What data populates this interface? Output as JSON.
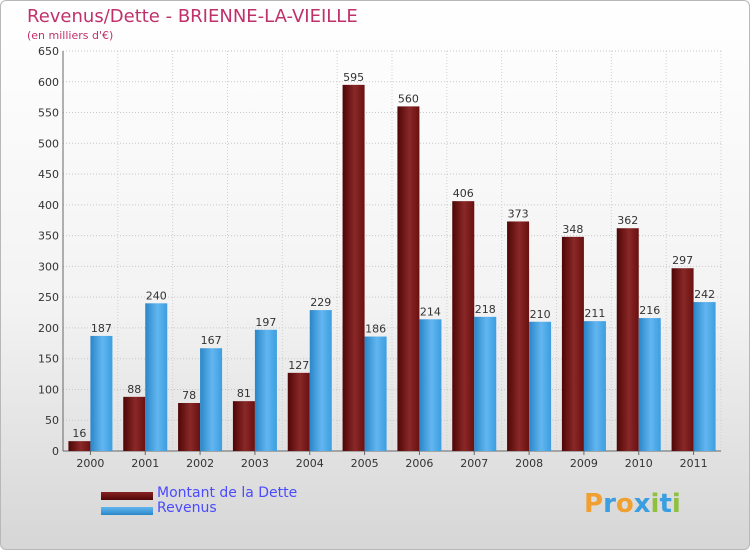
{
  "title": "Revenus/Dette - BRIENNE-LA-VIEILLE",
  "subtitle": "(en milliers d'€)",
  "colors": {
    "debt": "#6b0d0d",
    "revenue": "#3a9ee0",
    "title": "#c0306a",
    "legend_text": "#4a4aff"
  },
  "legend": [
    {
      "label": "Montant de la Dette",
      "color": "#6b0d0d"
    },
    {
      "label": "Revenus",
      "color": "#3a9ee0"
    }
  ],
  "logo": {
    "text": "Proxiti",
    "letters": [
      {
        "ch": "P",
        "color": "#f0a030"
      },
      {
        "ch": "r",
        "color": "#3a9ee0"
      },
      {
        "ch": "o",
        "color": "#f0a030"
      },
      {
        "ch": "x",
        "color": "#3a9ee0"
      },
      {
        "ch": "i",
        "color": "#90c040"
      },
      {
        "ch": "t",
        "color": "#3a9ee0"
      },
      {
        "ch": "i",
        "color": "#90c040"
      }
    ]
  },
  "chart_data": {
    "type": "bar",
    "title": "Revenus/Dette - BRIENNE-LA-VIEILLE",
    "subtitle": "(en milliers d'€)",
    "categories": [
      "2000",
      "2001",
      "2002",
      "2003",
      "2004",
      "2005",
      "2006",
      "2007",
      "2008",
      "2009",
      "2010",
      "2011"
    ],
    "series": [
      {
        "name": "Montant de la Dette",
        "values": [
          16,
          88,
          78,
          81,
          127,
          595,
          560,
          406,
          373,
          348,
          362,
          297
        ]
      },
      {
        "name": "Revenus",
        "values": [
          187,
          240,
          167,
          197,
          229,
          186,
          214,
          218,
          210,
          211,
          216,
          242
        ]
      }
    ],
    "ylim": [
      0,
      650
    ],
    "yticks": [
      0,
      50,
      100,
      150,
      200,
      250,
      300,
      350,
      400,
      450,
      500,
      550,
      600,
      650
    ],
    "grid": true,
    "legend_position": "bottom-left"
  }
}
